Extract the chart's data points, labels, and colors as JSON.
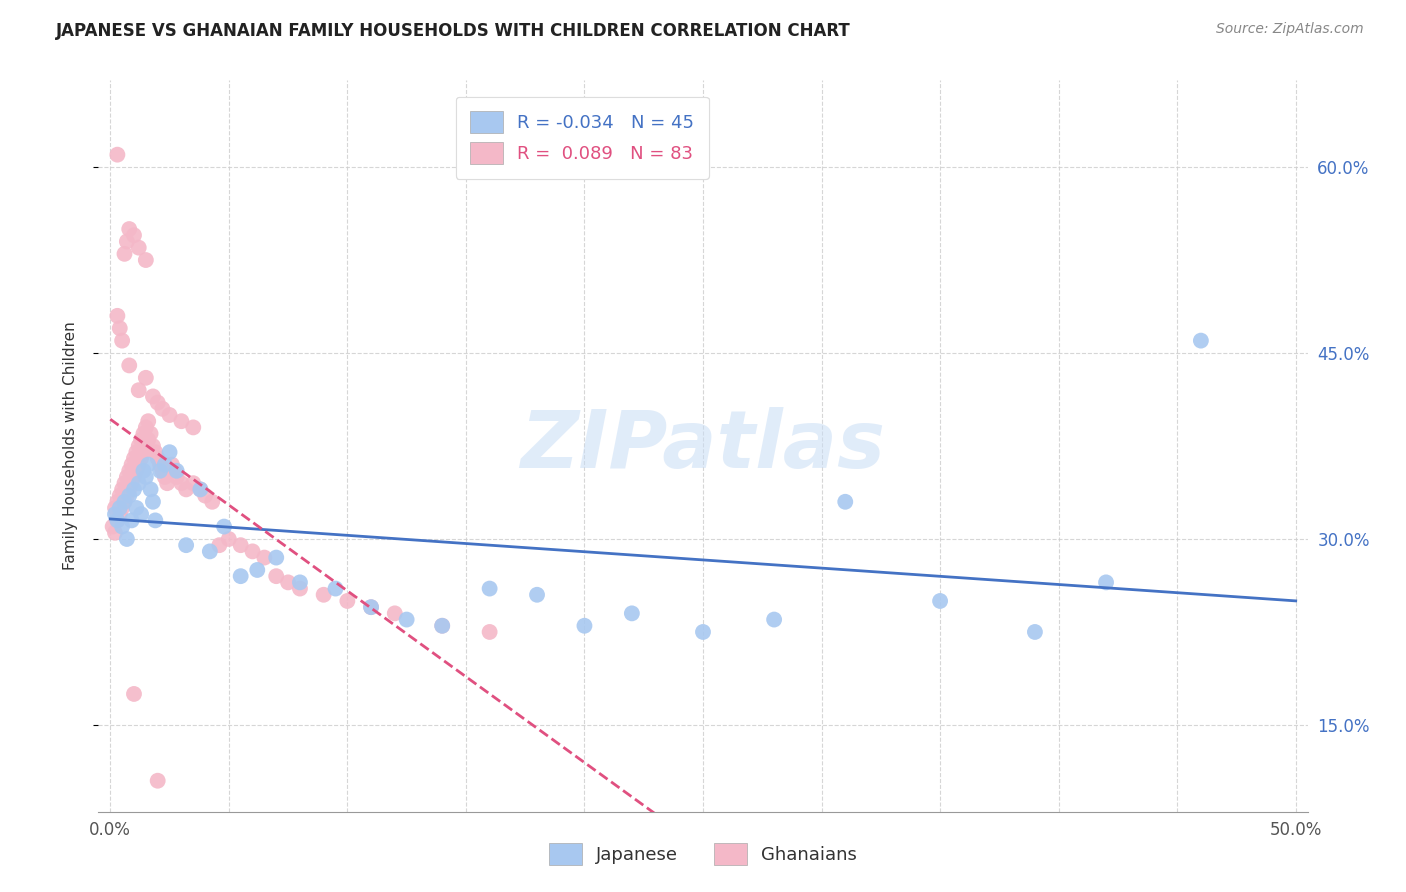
{
  "title": "JAPANESE VS GHANAIAN FAMILY HOUSEHOLDS WITH CHILDREN CORRELATION CHART",
  "source": "Source: ZipAtlas.com",
  "ylabel_label": "Family Households with Children",
  "xlim": [
    -0.005,
    0.505
  ],
  "ylim": [
    0.08,
    0.67
  ],
  "xtick_positions": [
    0.0,
    0.05,
    0.1,
    0.15,
    0.2,
    0.25,
    0.3,
    0.35,
    0.4,
    0.45,
    0.5
  ],
  "xtick_labels": [
    "0.0%",
    "",
    "",
    "",
    "",
    "",
    "",
    "",
    "",
    "",
    "50.0%"
  ],
  "ytick_positions": [
    0.15,
    0.3,
    0.45,
    0.6
  ],
  "ytick_labels": [
    "15.0%",
    "30.0%",
    "45.0%",
    "60.0%"
  ],
  "watermark": "ZIPatlas",
  "blue_fill_color": "#a8c8f0",
  "pink_fill_color": "#f4b8c8",
  "blue_line_color": "#4472c4",
  "pink_line_color": "#e05080",
  "legend_R_blue": "-0.034",
  "legend_N_blue": "45",
  "legend_R_pink": "0.089",
  "legend_N_pink": "83",
  "japanese_x": [
    0.002,
    0.003,
    0.004,
    0.005,
    0.006,
    0.007,
    0.008,
    0.009,
    0.01,
    0.011,
    0.012,
    0.013,
    0.014,
    0.015,
    0.016,
    0.017,
    0.018,
    0.019,
    0.021,
    0.023,
    0.025,
    0.028,
    0.032,
    0.038,
    0.042,
    0.048,
    0.055,
    0.062,
    0.07,
    0.08,
    0.095,
    0.11,
    0.125,
    0.14,
    0.16,
    0.18,
    0.2,
    0.22,
    0.25,
    0.28,
    0.31,
    0.35,
    0.39,
    0.42,
    0.46
  ],
  "japanese_y": [
    0.32,
    0.315,
    0.325,
    0.31,
    0.33,
    0.3,
    0.335,
    0.315,
    0.34,
    0.325,
    0.345,
    0.32,
    0.355,
    0.35,
    0.36,
    0.34,
    0.33,
    0.315,
    0.355,
    0.36,
    0.37,
    0.355,
    0.295,
    0.34,
    0.29,
    0.31,
    0.27,
    0.275,
    0.285,
    0.265,
    0.26,
    0.245,
    0.235,
    0.23,
    0.26,
    0.255,
    0.23,
    0.24,
    0.225,
    0.235,
    0.33,
    0.25,
    0.225,
    0.265,
    0.46
  ],
  "ghanaian_x": [
    0.001,
    0.002,
    0.002,
    0.003,
    0.003,
    0.004,
    0.004,
    0.005,
    0.005,
    0.006,
    0.006,
    0.007,
    0.007,
    0.008,
    0.008,
    0.009,
    0.009,
    0.01,
    0.01,
    0.011,
    0.011,
    0.012,
    0.012,
    0.013,
    0.013,
    0.014,
    0.014,
    0.015,
    0.015,
    0.016,
    0.016,
    0.017,
    0.018,
    0.019,
    0.02,
    0.021,
    0.022,
    0.023,
    0.024,
    0.025,
    0.026,
    0.027,
    0.028,
    0.03,
    0.032,
    0.035,
    0.038,
    0.04,
    0.043,
    0.046,
    0.05,
    0.055,
    0.06,
    0.065,
    0.07,
    0.075,
    0.08,
    0.09,
    0.1,
    0.11,
    0.12,
    0.14,
    0.16,
    0.008,
    0.012,
    0.015,
    0.018,
    0.02,
    0.022,
    0.025,
    0.03,
    0.035,
    0.003,
    0.004,
    0.005,
    0.006,
    0.007,
    0.008,
    0.01,
    0.012,
    0.015,
    0.003,
    0.01,
    0.02
  ],
  "ghanaian_y": [
    0.31,
    0.305,
    0.325,
    0.315,
    0.33,
    0.32,
    0.335,
    0.325,
    0.34,
    0.33,
    0.345,
    0.335,
    0.35,
    0.34,
    0.355,
    0.345,
    0.36,
    0.35,
    0.365,
    0.355,
    0.37,
    0.36,
    0.375,
    0.365,
    0.38,
    0.37,
    0.385,
    0.375,
    0.39,
    0.38,
    0.395,
    0.385,
    0.375,
    0.37,
    0.365,
    0.36,
    0.355,
    0.35,
    0.345,
    0.355,
    0.36,
    0.355,
    0.35,
    0.345,
    0.34,
    0.345,
    0.34,
    0.335,
    0.33,
    0.295,
    0.3,
    0.295,
    0.29,
    0.285,
    0.27,
    0.265,
    0.26,
    0.255,
    0.25,
    0.245,
    0.24,
    0.23,
    0.225,
    0.44,
    0.42,
    0.43,
    0.415,
    0.41,
    0.405,
    0.4,
    0.395,
    0.39,
    0.48,
    0.47,
    0.46,
    0.53,
    0.54,
    0.55,
    0.545,
    0.535,
    0.525,
    0.61,
    0.175,
    0.105
  ]
}
